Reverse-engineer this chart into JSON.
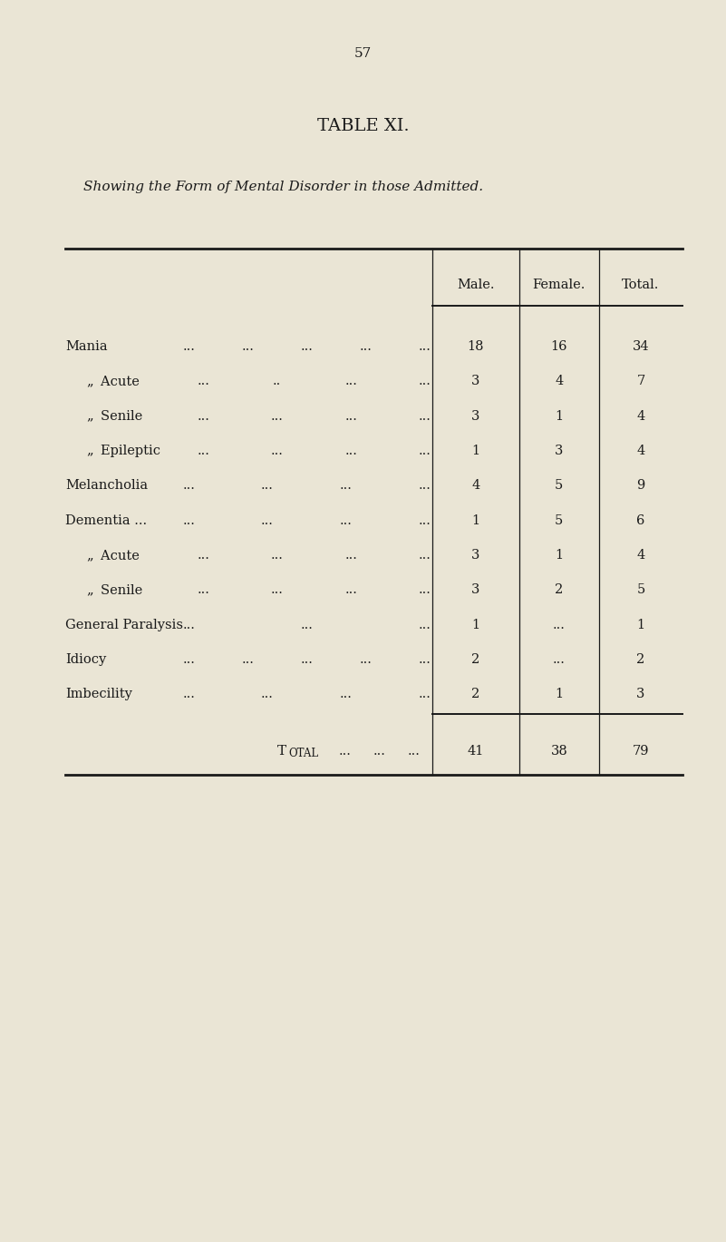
{
  "page_number": "57",
  "title": "TABLE XI.",
  "subtitle": "Showing the Form of Mental Disorder in those Admitted.",
  "background_color": "#EAE5D5",
  "col_headers": [
    "Male.",
    "Female.",
    "Total."
  ],
  "rows": [
    {
      "label": "Mania",
      "dots": [
        "...",
        "...",
        "...",
        "...",
        "..."
      ],
      "indent": false,
      "male": "18",
      "female": "16",
      "total": "34"
    },
    {
      "label": "„ Acute",
      "dots": [
        "...",
        "..",
        "...",
        "..."
      ],
      "indent": true,
      "male": "3",
      "female": "4",
      "total": "7"
    },
    {
      "label": "„ Senile",
      "dots": [
        "...",
        "...",
        "...",
        "..."
      ],
      "indent": true,
      "male": "3",
      "female": "1",
      "total": "4"
    },
    {
      "label": "„ Epileptic",
      "dots": [
        "...",
        "...",
        "...",
        "..."
      ],
      "indent": true,
      "male": "1",
      "female": "3",
      "total": "4"
    },
    {
      "label": "Melancholia",
      "dots": [
        "...",
        "...",
        "...",
        "..."
      ],
      "indent": false,
      "male": "4",
      "female": "5",
      "total": "9"
    },
    {
      "label": "Dementia ...",
      "dots": [
        "...",
        "...",
        "...",
        "..."
      ],
      "indent": false,
      "male": "1",
      "female": "5",
      "total": "6"
    },
    {
      "label": "„ Acute",
      "dots": [
        "...",
        "...",
        "...",
        "..."
      ],
      "indent": true,
      "male": "3",
      "female": "1",
      "total": "4"
    },
    {
      "label": "„ Senile",
      "dots": [
        "...",
        "...",
        "...",
        "..."
      ],
      "indent": true,
      "male": "3",
      "female": "2",
      "total": "5"
    },
    {
      "label": "General Paralysis",
      "dots": [
        "...",
        "...",
        "..."
      ],
      "indent": false,
      "male": "1",
      "female": "...",
      "total": "1"
    },
    {
      "label": "Idiocy",
      "dots": [
        "...",
        "...",
        "...",
        "...",
        "..."
      ],
      "indent": false,
      "male": "2",
      "female": "...",
      "total": "2"
    },
    {
      "label": "Imbecility",
      "dots": [
        "...",
        "...",
        "...",
        "..."
      ],
      "indent": false,
      "male": "2",
      "female": "1",
      "total": "3"
    }
  ],
  "total_label_T": "T",
  "total_label_rest": "OTAL",
  "total_dots": [
    "...",
    "...",
    "..."
  ],
  "total_male": "41",
  "total_female": "38",
  "total_total": "79",
  "text_color": "#1a1a1a"
}
